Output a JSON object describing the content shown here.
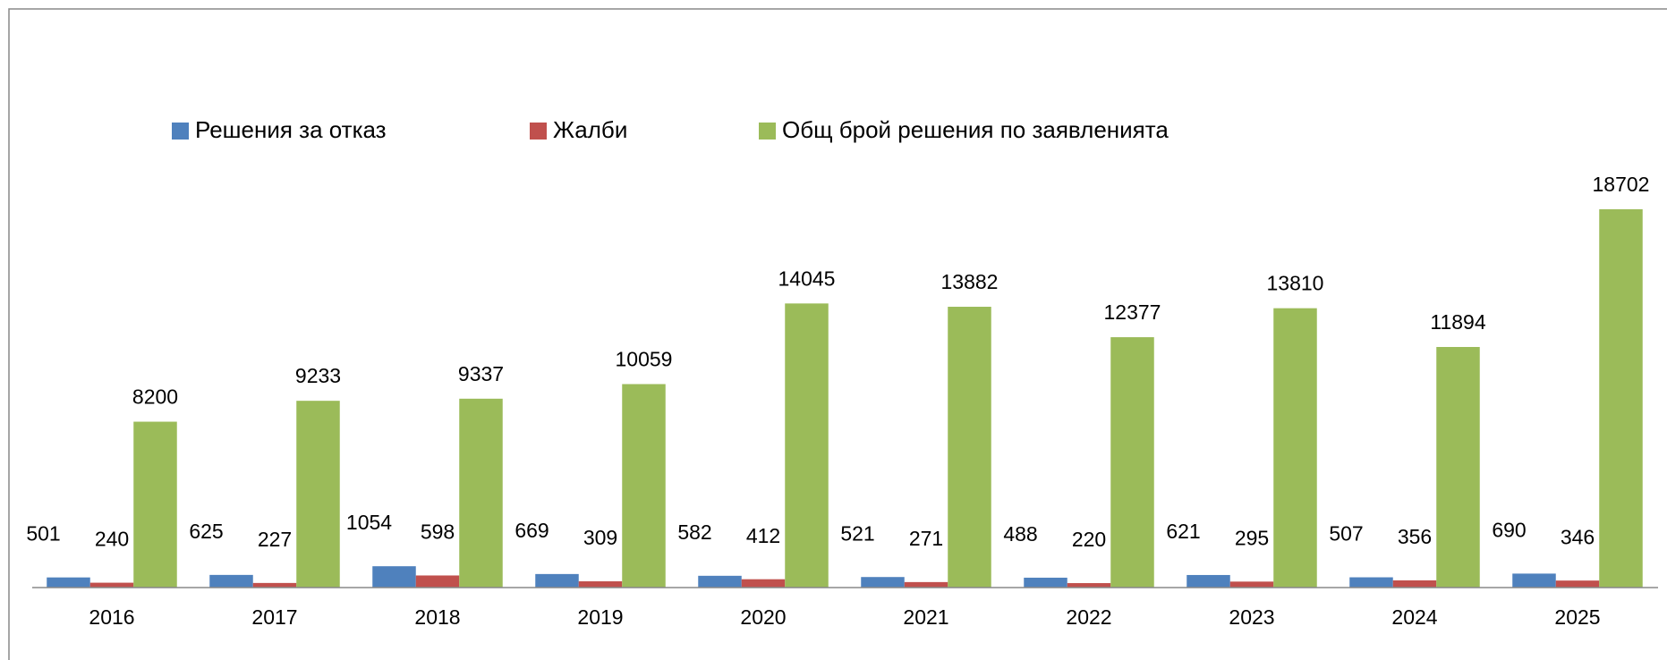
{
  "chart_data": {
    "type": "bar",
    "categories": [
      "2016",
      "2017",
      "2018",
      "2019",
      "2020",
      "2021",
      "2022",
      "2023",
      "2024",
      "2025"
    ],
    "series": [
      {
        "name": "Решения за отказ",
        "color": "#4f81bd",
        "values": [
          501,
          625,
          1054,
          669,
          582,
          521,
          488,
          621,
          507,
          690
        ]
      },
      {
        "name": "Жалби",
        "color": "#c0504d",
        "values": [
          240,
          227,
          598,
          309,
          412,
          271,
          220,
          295,
          356,
          346
        ]
      },
      {
        "name": "Общ брой решения по заявленията",
        "color": "#9bbb59",
        "values": [
          8200,
          9233,
          9337,
          10059,
          14045,
          13882,
          12377,
          13810,
          11894,
          18702
        ]
      }
    ]
  }
}
